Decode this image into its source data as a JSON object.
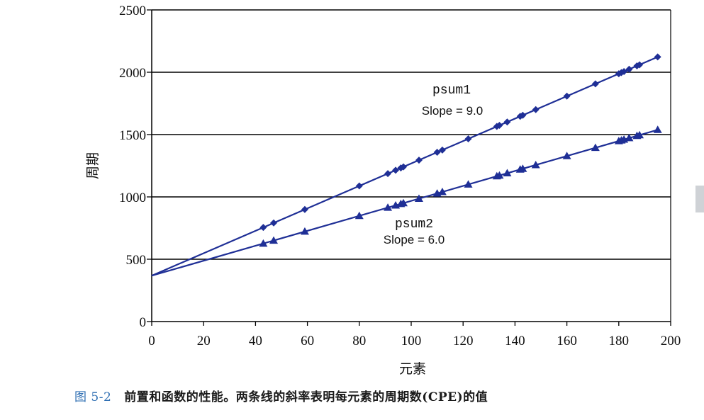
{
  "colors": {
    "series": "#1f2f96",
    "grid": "#000000",
    "caption_num": "#2f6fb3"
  },
  "caption": {
    "number": "图 5-2",
    "text": "前置和函数的性能。两条线的斜率表明每元素的周期数(CPE)的值"
  },
  "chart_data": {
    "type": "scatter",
    "title": "",
    "xlabel": "元素",
    "ylabel": "周期",
    "xlim": [
      0,
      200
    ],
    "ylim": [
      0,
      2500
    ],
    "xticks": [
      0,
      20,
      40,
      60,
      80,
      100,
      120,
      140,
      160,
      180,
      200
    ],
    "yticks": [
      0,
      500,
      1000,
      1500,
      2000,
      2500
    ],
    "grid": "horizontal",
    "series": [
      {
        "name": "psum1",
        "annotation": "Slope = 9.0",
        "marker": "diamond",
        "fit": {
          "slope": 9.0,
          "intercept": 368
        },
        "x": [
          43,
          47,
          59,
          80,
          91,
          94,
          96,
          97,
          103,
          110,
          112,
          122,
          133,
          134,
          137,
          142,
          143,
          148,
          160,
          171,
          180,
          181,
          182,
          184,
          187,
          188,
          195
        ],
        "y": [
          755,
          791,
          899,
          1088,
          1187,
          1214,
          1232,
          1241,
          1295,
          1358,
          1376,
          1466,
          1565,
          1574,
          1601,
          1646,
          1655,
          1700,
          1808,
          1907,
          1988,
          1997,
          2006,
          2024,
          2051,
          2060,
          2123
        ]
      },
      {
        "name": "psum2",
        "annotation": "Slope = 6.0",
        "marker": "triangle",
        "fit": {
          "slope": 6.0,
          "intercept": 368
        },
        "x": [
          43,
          47,
          59,
          80,
          91,
          94,
          96,
          97,
          103,
          110,
          112,
          122,
          133,
          134,
          137,
          142,
          143,
          148,
          160,
          171,
          180,
          181,
          182,
          184,
          187,
          188,
          195
        ],
        "y": [
          626,
          650,
          722,
          848,
          914,
          932,
          944,
          950,
          986,
          1028,
          1040,
          1100,
          1166,
          1172,
          1190,
          1220,
          1226,
          1256,
          1328,
          1394,
          1448,
          1454,
          1460,
          1472,
          1490,
          1496,
          1538
        ]
      }
    ]
  }
}
